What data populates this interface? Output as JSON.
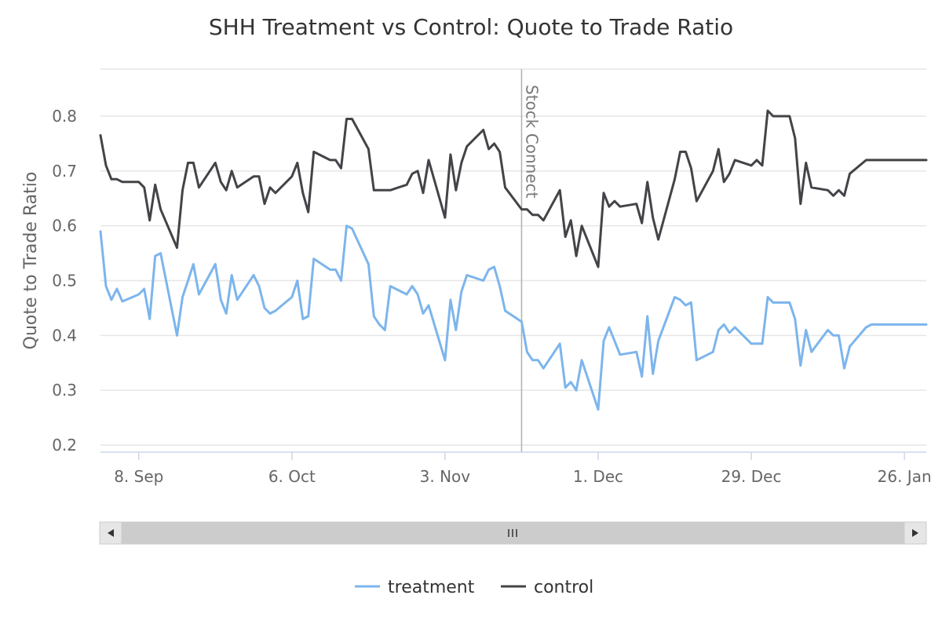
{
  "chart_data": {
    "type": "line",
    "title": "SHH Treatment vs Control: Quote to Trade Ratio",
    "ylabel": "Quote to Trade Ratio",
    "xlabel": "",
    "ylim": [
      0.2,
      0.85
    ],
    "yticks": [
      "0.2",
      "0.3",
      "0.4",
      "0.5",
      "0.6",
      "0.7",
      "0.8"
    ],
    "xticks": [
      {
        "label": "8. Sep",
        "date": "2014-09-08"
      },
      {
        "label": "6. Oct",
        "date": "2014-10-06"
      },
      {
        "label": "3. Nov",
        "date": "2014-11-03"
      },
      {
        "label": "1. Dec",
        "date": "2014-12-01"
      },
      {
        "label": "29. Dec",
        "date": "2014-12-29"
      },
      {
        "label": "26. Jan",
        "date": "2015-01-26"
      }
    ],
    "xrange": [
      "2014-09-01",
      "2015-01-30"
    ],
    "grid": true,
    "legend": "bottom-center",
    "plotline": {
      "label": "Stock Connect",
      "date": "2014-11-17"
    },
    "series": [
      {
        "name": "treatment",
        "color": "#7cb5ec",
        "x": [
          "2014-09-01",
          "2014-09-02",
          "2014-09-03",
          "2014-09-04",
          "2014-09-05",
          "2014-09-08",
          "2014-09-09",
          "2014-09-10",
          "2014-09-11",
          "2014-09-12",
          "2014-09-15",
          "2014-09-16",
          "2014-09-17",
          "2014-09-18",
          "2014-09-19",
          "2014-09-22",
          "2014-09-23",
          "2014-09-24",
          "2014-09-25",
          "2014-09-26",
          "2014-09-29",
          "2014-09-30",
          "2014-10-01",
          "2014-10-02",
          "2014-10-03",
          "2014-10-06",
          "2014-10-07",
          "2014-10-08",
          "2014-10-09",
          "2014-10-10",
          "2014-10-13",
          "2014-10-14",
          "2014-10-15",
          "2014-10-16",
          "2014-10-17",
          "2014-10-20",
          "2014-10-21",
          "2014-10-22",
          "2014-10-23",
          "2014-10-24",
          "2014-10-27",
          "2014-10-28",
          "2014-10-29",
          "2014-10-30",
          "2014-10-31",
          "2014-11-03",
          "2014-11-04",
          "2014-11-05",
          "2014-11-06",
          "2014-11-07",
          "2014-11-10",
          "2014-11-11",
          "2014-11-12",
          "2014-11-13",
          "2014-11-14",
          "2014-11-17",
          "2014-11-18",
          "2014-11-19",
          "2014-11-20",
          "2014-11-21",
          "2014-11-24",
          "2014-11-25",
          "2014-11-26",
          "2014-11-27",
          "2014-11-28",
          "2014-12-01",
          "2014-12-02",
          "2014-12-03",
          "2014-12-04",
          "2014-12-05",
          "2014-12-08",
          "2014-12-09",
          "2014-12-10",
          "2014-12-11",
          "2014-12-12",
          "2014-12-15",
          "2014-12-16",
          "2014-12-17",
          "2014-12-18",
          "2014-12-19",
          "2014-12-22",
          "2014-12-23",
          "2014-12-24",
          "2014-12-25",
          "2014-12-26",
          "2014-12-29",
          "2014-12-30",
          "2014-12-31",
          "2015-01-01",
          "2015-01-02",
          "2015-01-05",
          "2015-01-06",
          "2015-01-07",
          "2015-01-08",
          "2015-01-09",
          "2015-01-12",
          "2015-01-13",
          "2015-01-14",
          "2015-01-15",
          "2015-01-16",
          "2015-01-19",
          "2015-01-20",
          "2015-01-21",
          "2015-01-22",
          "2015-01-23",
          "2015-01-26",
          "2015-01-27",
          "2015-01-28",
          "2015-01-29",
          "2015-01-30"
        ],
        "values": [
          0.59,
          0.49,
          0.465,
          0.485,
          0.462,
          0.475,
          0.485,
          0.43,
          0.545,
          0.55,
          0.4,
          0.47,
          0.5,
          0.53,
          0.475,
          0.53,
          0.465,
          0.44,
          0.51,
          0.465,
          0.51,
          0.49,
          0.45,
          0.44,
          0.445,
          0.47,
          0.5,
          0.43,
          0.435,
          0.54,
          0.52,
          0.52,
          0.5,
          0.6,
          0.595,
          0.53,
          0.435,
          0.42,
          0.41,
          0.49,
          0.475,
          0.49,
          0.475,
          0.44,
          0.455,
          0.355,
          0.465,
          0.41,
          0.48,
          0.51,
          0.5,
          0.52,
          0.525,
          0.49,
          0.445,
          0.425,
          0.37,
          0.355,
          0.355,
          0.34,
          0.385,
          0.305,
          0.315,
          0.3,
          0.355,
          0.265,
          0.39,
          0.415,
          0.39,
          0.365,
          0.37,
          0.325,
          0.435,
          0.33,
          0.39,
          0.47,
          0.465,
          0.455,
          0.46,
          0.355,
          0.37,
          0.41,
          0.42,
          0.405,
          0.415,
          0.385,
          0.385,
          0.385,
          0.47,
          0.46,
          0.46,
          0.43,
          0.345,
          0.41,
          0.37,
          0.41,
          0.4,
          0.4,
          0.34,
          0.38,
          0.415,
          0.42,
          0.42,
          0.42,
          0.42,
          0.42,
          0.42,
          0.42,
          0.42,
          0.42
        ]
      },
      {
        "name": "control",
        "color": "#434348",
        "x": [
          "2014-09-01",
          "2014-09-02",
          "2014-09-03",
          "2014-09-04",
          "2014-09-05",
          "2014-09-08",
          "2014-09-09",
          "2014-09-10",
          "2014-09-11",
          "2014-09-12",
          "2014-09-15",
          "2014-09-16",
          "2014-09-17",
          "2014-09-18",
          "2014-09-19",
          "2014-09-22",
          "2014-09-23",
          "2014-09-24",
          "2014-09-25",
          "2014-09-26",
          "2014-09-29",
          "2014-09-30",
          "2014-10-01",
          "2014-10-02",
          "2014-10-03",
          "2014-10-06",
          "2014-10-07",
          "2014-10-08",
          "2014-10-09",
          "2014-10-10",
          "2014-10-13",
          "2014-10-14",
          "2014-10-15",
          "2014-10-16",
          "2014-10-17",
          "2014-10-20",
          "2014-10-21",
          "2014-10-22",
          "2014-10-23",
          "2014-10-24",
          "2014-10-27",
          "2014-10-28",
          "2014-10-29",
          "2014-10-30",
          "2014-10-31",
          "2014-11-03",
          "2014-11-04",
          "2014-11-05",
          "2014-11-06",
          "2014-11-07",
          "2014-11-10",
          "2014-11-11",
          "2014-11-12",
          "2014-11-13",
          "2014-11-14",
          "2014-11-17",
          "2014-11-18",
          "2014-11-19",
          "2014-11-20",
          "2014-11-21",
          "2014-11-24",
          "2014-11-25",
          "2014-11-26",
          "2014-11-27",
          "2014-11-28",
          "2014-12-01",
          "2014-12-02",
          "2014-12-03",
          "2014-12-04",
          "2014-12-05",
          "2014-12-08",
          "2014-12-09",
          "2014-12-10",
          "2014-12-11",
          "2014-12-12",
          "2014-12-15",
          "2014-12-16",
          "2014-12-17",
          "2014-12-18",
          "2014-12-19",
          "2014-12-22",
          "2014-12-23",
          "2014-12-24",
          "2014-12-25",
          "2014-12-26",
          "2014-12-29",
          "2014-12-30",
          "2014-12-31",
          "2015-01-01",
          "2015-01-02",
          "2015-01-05",
          "2015-01-06",
          "2015-01-07",
          "2015-01-08",
          "2015-01-09",
          "2015-01-12",
          "2015-01-13",
          "2015-01-14",
          "2015-01-15",
          "2015-01-16",
          "2015-01-19",
          "2015-01-20",
          "2015-01-21",
          "2015-01-22",
          "2015-01-23",
          "2015-01-26",
          "2015-01-27",
          "2015-01-28",
          "2015-01-29",
          "2015-01-30"
        ],
        "values": [
          0.765,
          0.71,
          0.685,
          0.685,
          0.68,
          0.68,
          0.67,
          0.61,
          0.675,
          0.63,
          0.56,
          0.665,
          0.715,
          0.715,
          0.67,
          0.715,
          0.68,
          0.665,
          0.7,
          0.67,
          0.69,
          0.69,
          0.64,
          0.67,
          0.66,
          0.69,
          0.715,
          0.66,
          0.625,
          0.735,
          0.72,
          0.72,
          0.705,
          0.795,
          0.795,
          0.74,
          0.665,
          0.665,
          0.665,
          0.665,
          0.675,
          0.695,
          0.7,
          0.66,
          0.72,
          0.615,
          0.73,
          0.665,
          0.715,
          0.745,
          0.775,
          0.74,
          0.75,
          0.735,
          0.67,
          0.63,
          0.63,
          0.62,
          0.62,
          0.61,
          0.665,
          0.58,
          0.61,
          0.545,
          0.6,
          0.525,
          0.66,
          0.635,
          0.645,
          0.635,
          0.64,
          0.605,
          0.68,
          0.615,
          0.575,
          0.685,
          0.735,
          0.735,
          0.705,
          0.645,
          0.7,
          0.74,
          0.68,
          0.695,
          0.72,
          0.71,
          0.72,
          0.71,
          0.81,
          0.8,
          0.8,
          0.76,
          0.64,
          0.715,
          0.67,
          0.665,
          0.655,
          0.665,
          0.655,
          0.695,
          0.72,
          0.72,
          0.72,
          0.72,
          0.72,
          0.72,
          0.72,
          0.72,
          0.72,
          0.72
        ]
      }
    ]
  },
  "navigator": {
    "left_arrow": "◀",
    "right_arrow": "▶",
    "grip": "III"
  }
}
